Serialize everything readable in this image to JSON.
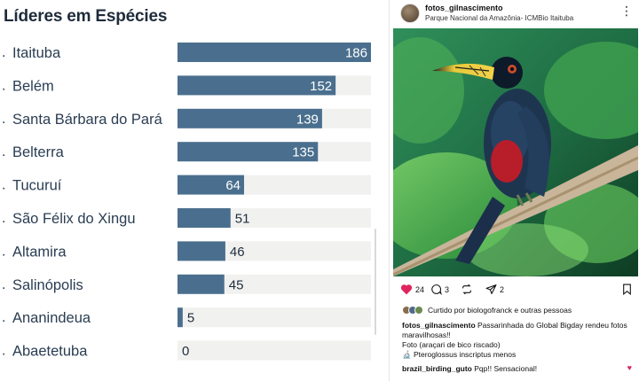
{
  "chart_data": {
    "type": "bar",
    "title": "Líderes em Espécies",
    "categories": [
      "Itaituba",
      "Belém",
      "Santa Bárbara do Pará",
      "Belterra",
      "Tucuruí",
      "São Félix do Xingu",
      "Altamira",
      "Salinópolis",
      "Ananindeua",
      "Abaetetuba"
    ],
    "values": [
      186,
      152,
      139,
      135,
      64,
      51,
      46,
      45,
      5,
      0
    ],
    "xlim": [
      0,
      186
    ],
    "orientation": "horizontal",
    "bar_color": "#4a6f8e",
    "track_color": "#f1f1ef"
  },
  "post": {
    "username": "fotos_gilnascimento",
    "location": "Parque Nacional da Amazônia- ICMBio Itaituba",
    "more_icon": "more-vertical-icon",
    "likes": "24",
    "comments": "3",
    "shares": "2",
    "liked_by": "Curtido por biologofranck e outras pessoas",
    "caption_user": "fotos_gilnascimento",
    "caption_text": " Passarinhada do Global Bigday rendeu fotos maravilhosas!!",
    "caption_line2": "Foto (araçari de bico riscado)",
    "caption_line3": "🔬 Pteroglossus inscriptus menos",
    "comment_user": "brazil_birding_guto",
    "comment_text": " Pqp!! Sensacional!",
    "colors": {
      "heart": "#e0245e"
    }
  }
}
